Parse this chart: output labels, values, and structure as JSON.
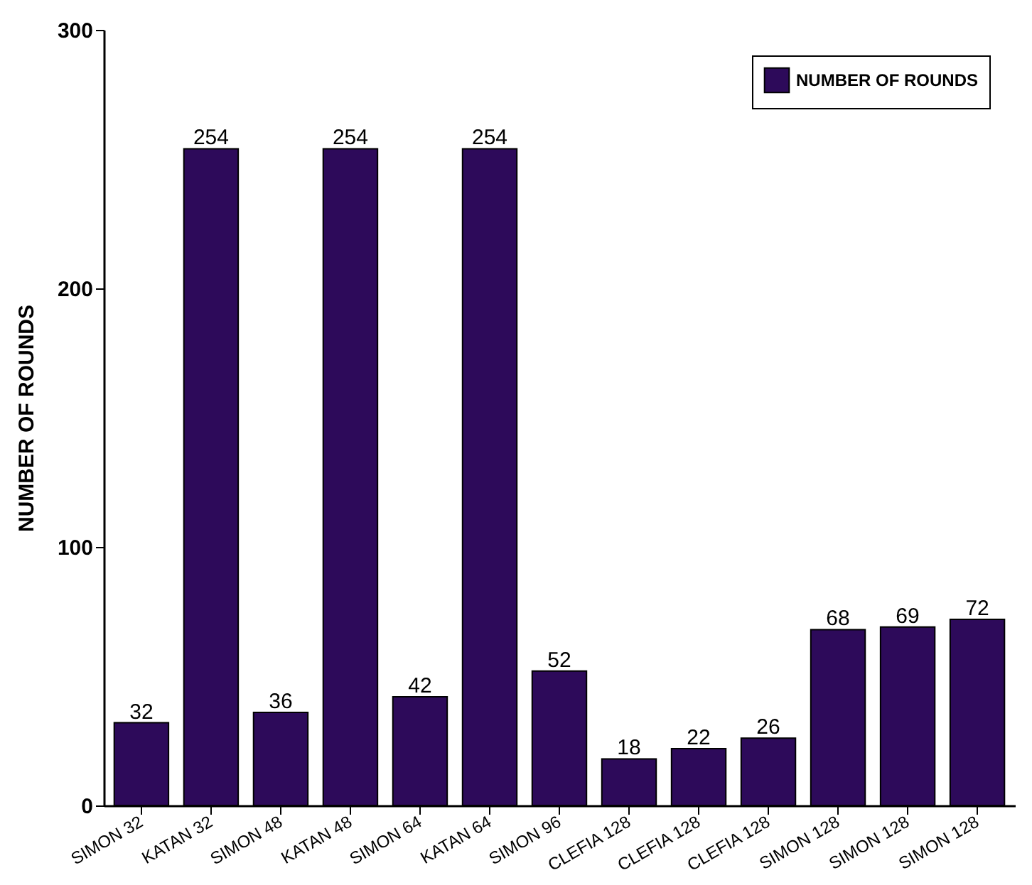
{
  "chart_data": {
    "type": "bar",
    "categories": [
      "SIMON 32",
      "KATAN 32",
      "SIMON 48",
      "KATAN 48",
      "SIMON 64",
      "KATAN 64",
      "SIMON 96",
      "CLEFIA 128",
      "CLEFIA 128",
      "CLEFIA 128",
      "SIMON 128",
      "SIMON 128",
      "SIMON 128"
    ],
    "series": [
      {
        "name": "NUMBER OF ROUNDS",
        "color": "#2d0a5a",
        "values": [
          32,
          254,
          36,
          254,
          42,
          254,
          52,
          18,
          22,
          26,
          68,
          69,
          72
        ]
      }
    ],
    "ylabel": "NUMBER OF ROUNDS",
    "ylim": [
      0,
      300
    ],
    "yticks": [
      0,
      100,
      200,
      300
    ],
    "data_labels": true,
    "legend": "top right",
    "grid": false
  }
}
